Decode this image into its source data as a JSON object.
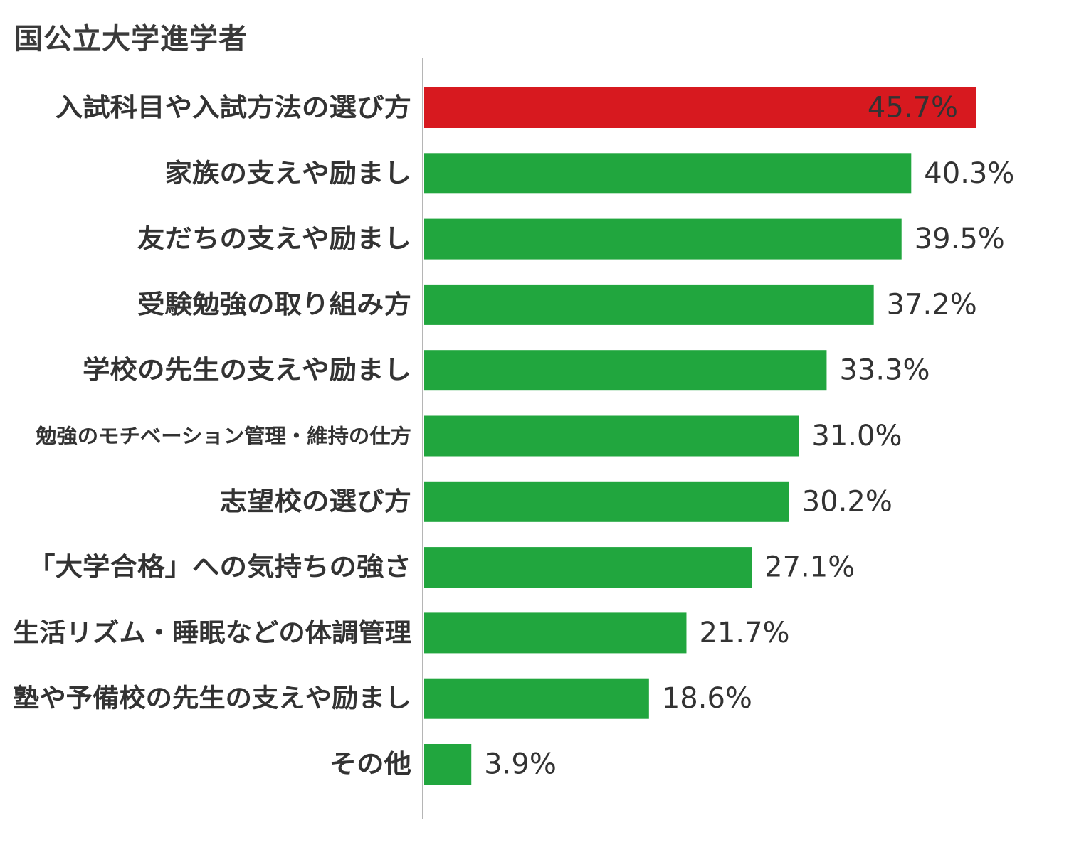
{
  "chart_data": {
    "type": "bar",
    "orientation": "horizontal",
    "title": "国公立大学進学者",
    "categories": [
      "入試科目や入試方法の選び方",
      "家族の支えや励まし",
      "友だちの支えや励まし",
      "受験勉強の取り組み方",
      "学校の先生の支えや励まし",
      "勉強のモチベーション管理・維持の仕方",
      "志望校の選び方",
      "「大学合格」への気持ちの強さ",
      "生活リズム・睡眠などの体調管理",
      "塾や予備校の先生の支えや励まし",
      "その他"
    ],
    "values": [
      45.7,
      40.3,
      39.5,
      37.2,
      33.3,
      31.0,
      30.2,
      27.1,
      21.7,
      18.6,
      3.9
    ],
    "value_labels": [
      "45.7%",
      "40.3%",
      "39.5%",
      "37.2%",
      "33.3%",
      "31.0%",
      "30.2%",
      "27.1%",
      "21.7%",
      "18.6%",
      "3.9%"
    ],
    "highlight_index": 0,
    "colors": {
      "highlight": "#d7191f",
      "bar": "#21a63e",
      "axis": "#b5b5b5",
      "text": "#333333",
      "highlight_value_text": "#ffffff"
    },
    "xlim": [
      0,
      45.7
    ],
    "grid": false,
    "legend": "none"
  }
}
